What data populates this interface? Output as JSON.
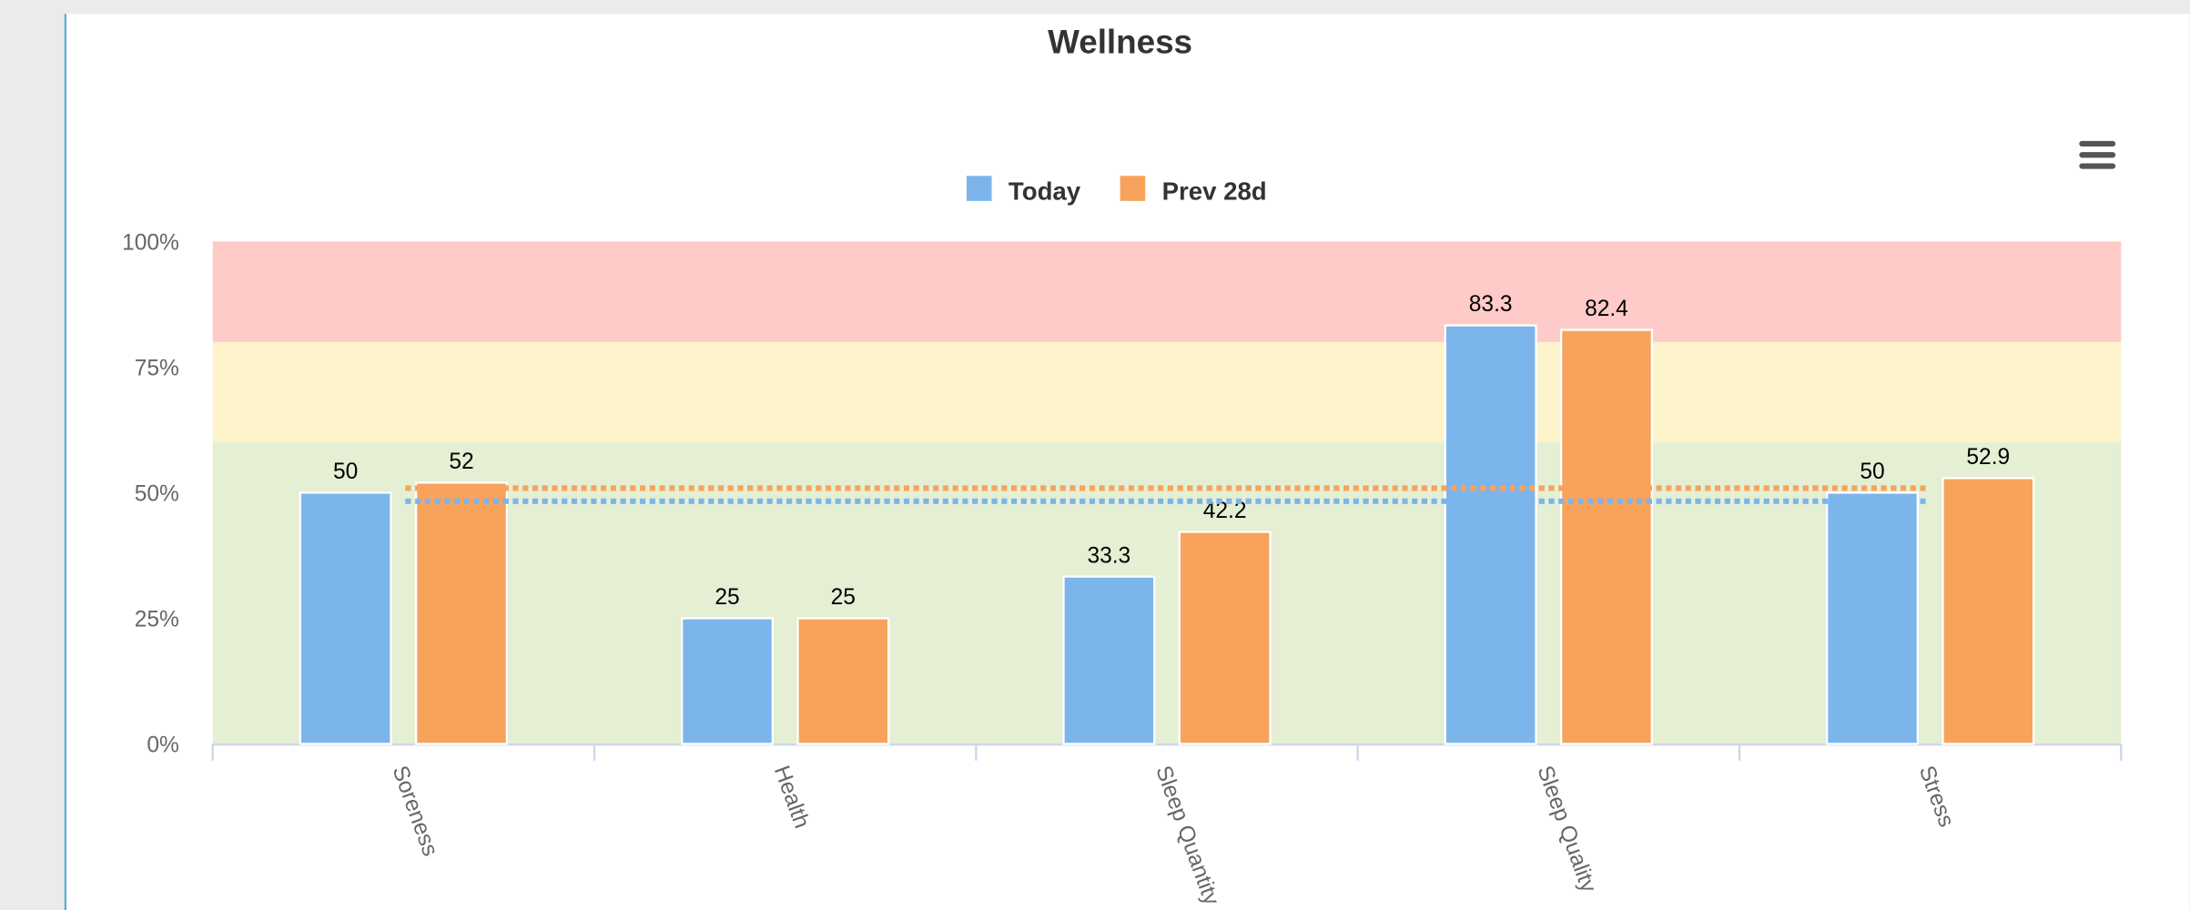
{
  "chart_data": {
    "type": "bar",
    "title": "Wellness",
    "categories": [
      "Soreness",
      "Health",
      "Sleep Quantity",
      "Sleep Quality",
      "Stress"
    ],
    "series": [
      {
        "name": "Today",
        "color": "#7cb5ec",
        "values": [
          50,
          25,
          33.3,
          83.3,
          50
        ],
        "average": 48.3
      },
      {
        "name": "Prev 28d",
        "color": "#f7a35c",
        "values": [
          52,
          25,
          42.2,
          82.4,
          52.9
        ],
        "average": 50.9
      }
    ],
    "ylim": [
      0,
      100
    ],
    "yticks": [
      {
        "value": 0,
        "label": "0%"
      },
      {
        "value": 25,
        "label": "25%"
      },
      {
        "value": 50,
        "label": "50%"
      },
      {
        "value": 75,
        "label": "75%"
      },
      {
        "value": 100,
        "label": "100%"
      }
    ],
    "bands": [
      {
        "from": 0,
        "to": 60,
        "color": "#e4efd3"
      },
      {
        "from": 60,
        "to": 80,
        "color": "#fdf3cb"
      },
      {
        "from": 80,
        "to": 100,
        "color": "#fecbc9"
      }
    ],
    "legend": "top"
  }
}
